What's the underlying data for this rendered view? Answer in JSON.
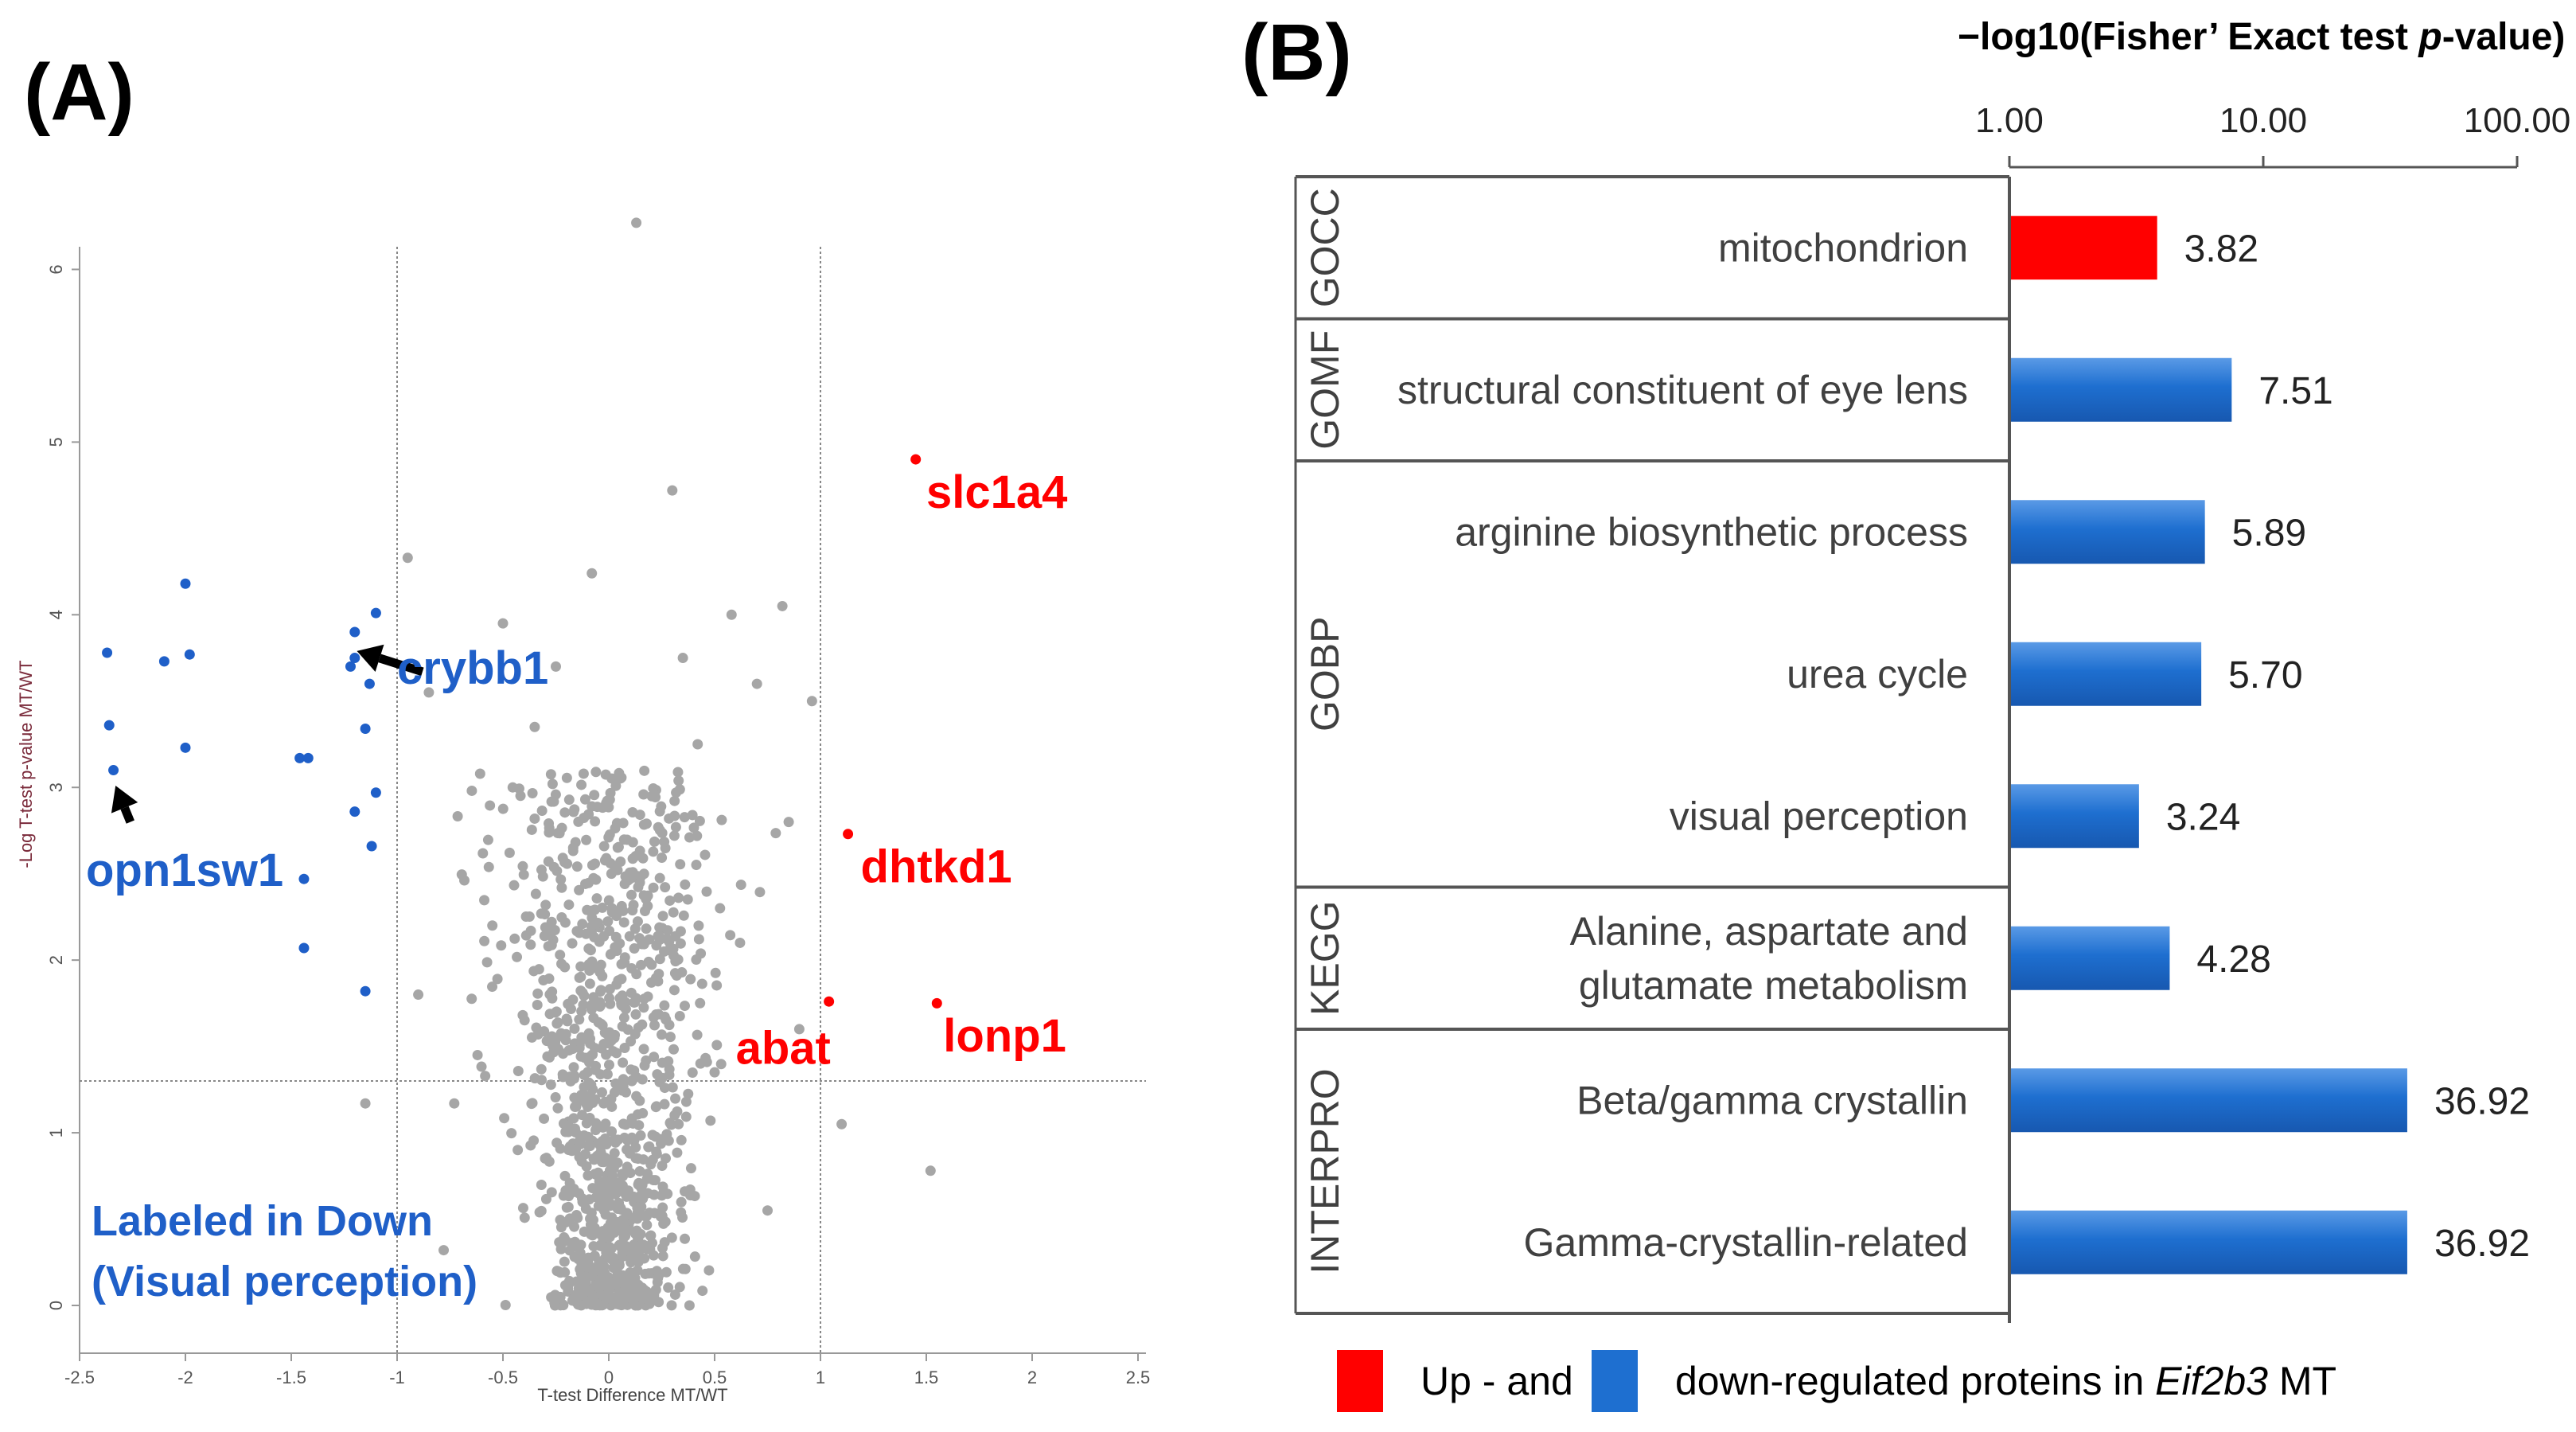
{
  "panels": {
    "a": {
      "label": "(A)"
    },
    "b": {
      "label": "(B)"
    }
  },
  "colors": {
    "up": "#ff0000",
    "down": "#1f5fc8",
    "down_bar": "#1e6fd0",
    "gray_point": "#a6a6a6",
    "text_gray": "#404040"
  },
  "volcano": {
    "annotation_lines": [
      "Labeled in Down",
      "(Visual perception)"
    ]
  },
  "bars": {
    "axis_title_parts": [
      "−log10(Fisher’ Exact test ",
      "p",
      "-value)"
    ],
    "legend": {
      "up_label": "Up - and",
      "down_label_parts": [
        "down-regulated proteins in ",
        "Eif2b3",
        " MT"
      ]
    }
  },
  "chart_data": [
    {
      "type": "scatter",
      "title": "",
      "xlabel": "T-test Difference MT/WT",
      "ylabel": "-Log T-test p-value MT/WT",
      "xlim": [
        -2.5,
        2.5
      ],
      "ylim": [
        0,
        6.5
      ],
      "x_ticks": [
        -2.5,
        -2,
        -1.5,
        -1,
        -0.5,
        0,
        0.5,
        1,
        1.5,
        2,
        2.5
      ],
      "x_tick_labels": [
        "-2.5",
        "-2",
        "-1.5",
        "-1",
        "-0.5",
        "0",
        "0.5",
        "1",
        "1.5",
        "2",
        "2.5"
      ],
      "y_ticks": [
        0,
        1,
        2,
        3,
        4,
        5,
        6
      ],
      "y_tick_labels": [
        "0",
        "1",
        "2",
        "3",
        "4",
        "5",
        "6"
      ],
      "threshold_lines": {
        "x": [
          -1,
          1
        ],
        "y": [
          1.3
        ]
      },
      "grid": false,
      "series": [
        {
          "color": "#ff0000",
          "points": [
            [
              1.45,
              4.9
            ],
            [
              1.13,
              2.73
            ],
            [
              1.04,
              1.76
            ],
            [
              1.55,
              1.75
            ]
          ]
        },
        {
          "color": "#1f5fc8",
          "points": [
            [
              -2.37,
              3.78
            ],
            [
              -2.36,
              3.36
            ],
            [
              -2.34,
              3.1
            ],
            [
              -2.1,
              3.73
            ],
            [
              -2.0,
              4.18
            ],
            [
              -1.98,
              3.77
            ],
            [
              -2.0,
              3.23
            ],
            [
              -1.46,
              3.17
            ],
            [
              -1.42,
              3.17
            ],
            [
              -1.44,
              2.47
            ],
            [
              -1.44,
              2.07
            ],
            [
              -1.2,
              3.9
            ],
            [
              -1.2,
              3.75
            ],
            [
              -1.22,
              3.7
            ],
            [
              -1.1,
              4.01
            ],
            [
              -1.13,
              3.6
            ],
            [
              -1.15,
              3.34
            ],
            [
              -1.2,
              2.86
            ],
            [
              -1.1,
              2.97
            ],
            [
              -1.12,
              2.66
            ],
            [
              -1.15,
              1.82
            ]
          ]
        }
      ],
      "gray_cloud": {
        "color": "#a6a6a6",
        "count": 1100,
        "x_center": 0.0,
        "x_spread": 0.14,
        "y_min": 0.0,
        "y_max": 3.1
      },
      "gray_outliers": [
        [
          0.13,
          6.27
        ],
        [
          0.3,
          4.72
        ],
        [
          -0.95,
          4.33
        ],
        [
          -0.08,
          4.24
        ],
        [
          0.82,
          4.05
        ],
        [
          0.58,
          4.0
        ],
        [
          -0.5,
          3.95
        ],
        [
          0.7,
          3.6
        ],
        [
          0.96,
          3.5
        ],
        [
          -0.85,
          3.55
        ],
        [
          0.85,
          2.8
        ],
        [
          -0.73,
          1.17
        ],
        [
          -0.62,
          1.45
        ],
        [
          1.1,
          1.05
        ],
        [
          -0.78,
          0.32
        ],
        [
          0.75,
          0.55
        ],
        [
          -1.15,
          1.17
        ],
        [
          1.52,
          0.78
        ],
        [
          -0.55,
          2.2
        ],
        [
          0.62,
          2.1
        ],
        [
          -0.43,
          0.9
        ],
        [
          0.5,
          1.35
        ],
        [
          -0.35,
          3.35
        ],
        [
          0.42,
          3.25
        ],
        [
          -0.9,
          1.8
        ],
        [
          0.9,
          1.6
        ],
        [
          -0.25,
          3.7
        ],
        [
          0.35,
          3.75
        ]
      ],
      "annotations": [
        {
          "text": "slc1a4",
          "x": 1.5,
          "y": 4.62,
          "color": "#ff0000"
        },
        {
          "text": "dhtkd1",
          "x": 1.19,
          "y": 2.45,
          "color": "#ff0000"
        },
        {
          "text": "abat",
          "x": 0.6,
          "y": 1.4,
          "color": "#ff0000"
        },
        {
          "text": "lonp1",
          "x": 1.58,
          "y": 1.47,
          "color": "#ff0000"
        },
        {
          "text": "crybb1",
          "x": -1.0,
          "y": 3.6,
          "color": "#1f5fc8"
        },
        {
          "text": "opn1sw1",
          "x": -2.47,
          "y": 2.43,
          "color": "#1f5fc8"
        }
      ],
      "arrows": [
        {
          "from": [
            -0.88,
            3.67
          ],
          "to": [
            -1.19,
            3.79
          ]
        },
        {
          "from": [
            -2.26,
            2.8
          ],
          "to": [
            -2.33,
            3.01
          ]
        }
      ]
    },
    {
      "type": "bar",
      "orientation": "horizontal",
      "x_scale": "log",
      "xlim": [
        1,
        100
      ],
      "x_ticks": [
        1,
        10,
        100
      ],
      "x_tick_labels": [
        "1.00",
        "10.00",
        "100.00"
      ],
      "groups": [
        "GOCC",
        "GOMF",
        "GOBP",
        "GOBP",
        "GOBP",
        "KEGG",
        "INTERPRO",
        "INTERPRO"
      ],
      "group_labels": [
        {
          "name": "GOCC",
          "rows": [
            0,
            0
          ]
        },
        {
          "name": "GOMF",
          "rows": [
            1,
            1
          ]
        },
        {
          "name": "GOBP",
          "rows": [
            2,
            4
          ]
        },
        {
          "name": "KEGG",
          "rows": [
            5,
            5
          ]
        },
        {
          "name": "INTERPRO",
          "rows": [
            6,
            7
          ]
        }
      ],
      "categories": [
        [
          "mitochondrion"
        ],
        [
          "structural constituent of eye lens"
        ],
        [
          "arginine biosynthetic process"
        ],
        [
          "urea cycle"
        ],
        [
          "visual perception"
        ],
        [
          "Alanine, aspartate and",
          "glutamate metabolism"
        ],
        [
          "Beta/gamma crystallin"
        ],
        [
          "Gamma-crystallin-related"
        ]
      ],
      "values": [
        3.82,
        7.51,
        5.89,
        5.7,
        3.24,
        4.28,
        36.92,
        36.92
      ],
      "value_labels": [
        "3.82",
        "7.51",
        "5.89",
        "5.70",
        "3.24",
        "4.28",
        "36.92",
        "36.92"
      ],
      "bar_regulation": [
        "up",
        "down",
        "down",
        "down",
        "down",
        "down",
        "down",
        "down"
      ]
    }
  ]
}
